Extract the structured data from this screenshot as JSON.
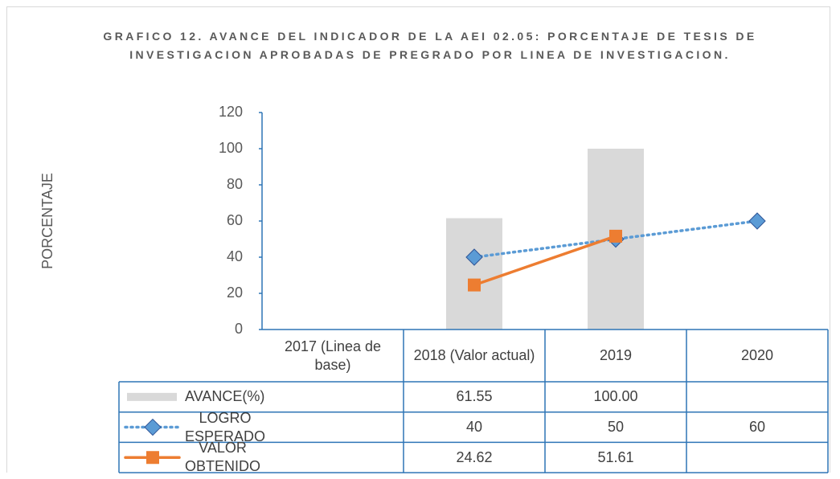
{
  "chart_data": {
    "type": "bar_line_table",
    "title": "GRAFICO 12. AVANCE DEL INDICADOR DE LA AEI 02.05: PORCENTAJE DE TESIS DE INVESTIGACION APROBADAS DE PREGRADO POR LINEA DE INVESTIGACION.",
    "y_label": "PORCENTAJE",
    "categories": [
      "2017 (Linea de base)",
      "2018 (Valor actual)",
      "2019",
      "2020"
    ],
    "ylim": [
      0,
      120
    ],
    "yticks": [
      0,
      20,
      40,
      60,
      80,
      100,
      120
    ],
    "grid": false,
    "series": [
      {
        "name": "AVANCE(%)",
        "type": "bar",
        "color": "#d9d9d9",
        "values": [
          null,
          61.55,
          100,
          null
        ],
        "value_labels": [
          null,
          "61.55",
          "100.00",
          null
        ]
      },
      {
        "name": "LOGRO ESPERADO",
        "type": "line",
        "style": "dotted",
        "marker": "diamond",
        "color": "#5b9bd5",
        "values": [
          null,
          40,
          50,
          60
        ]
      },
      {
        "name": "VALOR OBTENIDO",
        "type": "line",
        "style": "solid",
        "marker": "square",
        "color": "#ed7d31",
        "values": [
          null,
          24.62,
          51.61,
          null
        ]
      }
    ]
  }
}
